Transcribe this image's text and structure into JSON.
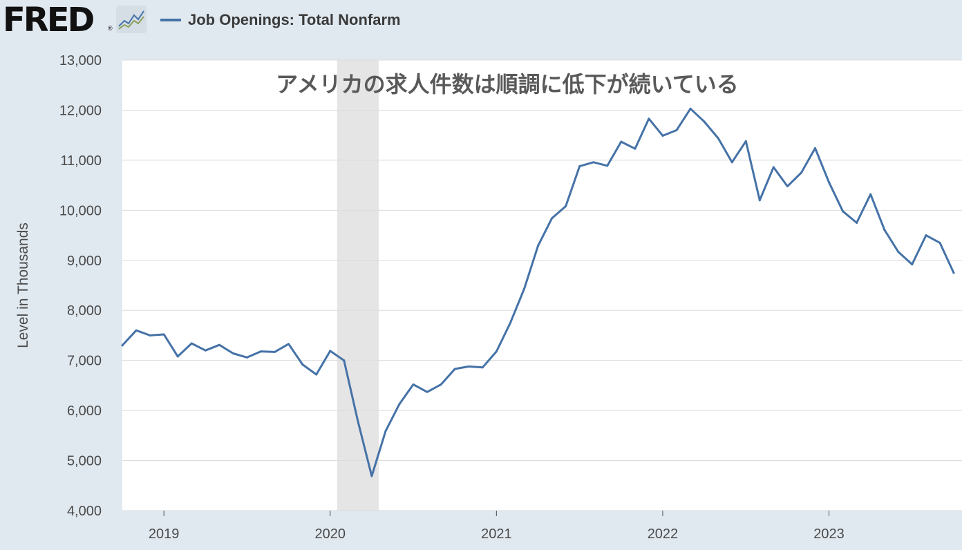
{
  "header": {
    "logo_text": "FRED",
    "logo_reg": "®",
    "legend_label": "Job Openings: Total Nonfarm"
  },
  "colors": {
    "series": "#4572a7",
    "background": "#e1e9f0",
    "plot_background": "#ffffff",
    "recession_band": "#e5e5e5",
    "grid": "#dcdcdc"
  },
  "chart_data": {
    "type": "line",
    "title": "アメリカの求人件数は順調に低下が続いている",
    "xlabel": "",
    "ylabel": "Level in Thousands",
    "ylim": [
      4000,
      13000
    ],
    "y_ticks": [
      4000,
      5000,
      6000,
      7000,
      8000,
      9000,
      10000,
      11000,
      12000,
      13000
    ],
    "y_tick_labels": [
      "4,000",
      "5,000",
      "6,000",
      "7,000",
      "8,000",
      "9,000",
      "10,000",
      "11,000",
      "12,000",
      "13,000"
    ],
    "x_tick_labels": [
      "2019",
      "2020",
      "2021",
      "2022",
      "2023"
    ],
    "x_ticks": [
      "2019-01",
      "2020-01",
      "2021-01",
      "2022-01",
      "2023-01"
    ],
    "xlim": [
      "2018-10",
      "2023-10"
    ],
    "grid": true,
    "legend": "top-left",
    "recession_shading": {
      "start": "2020-02",
      "end": "2020-04"
    },
    "series": [
      {
        "name": "Job Openings: Total Nonfarm",
        "x": [
          "2018-10",
          "2018-11",
          "2018-12",
          "2019-01",
          "2019-02",
          "2019-03",
          "2019-04",
          "2019-05",
          "2019-06",
          "2019-07",
          "2019-08",
          "2019-09",
          "2019-10",
          "2019-11",
          "2019-12",
          "2020-01",
          "2020-02",
          "2020-03",
          "2020-04",
          "2020-05",
          "2020-06",
          "2020-07",
          "2020-08",
          "2020-09",
          "2020-10",
          "2020-11",
          "2020-12",
          "2021-01",
          "2021-02",
          "2021-03",
          "2021-04",
          "2021-05",
          "2021-06",
          "2021-07",
          "2021-08",
          "2021-09",
          "2021-10",
          "2021-11",
          "2021-12",
          "2022-01",
          "2022-02",
          "2022-03",
          "2022-04",
          "2022-05",
          "2022-06",
          "2022-07",
          "2022-08",
          "2022-09",
          "2022-10",
          "2022-11",
          "2022-12",
          "2023-01",
          "2023-02",
          "2023-03",
          "2023-04",
          "2023-05",
          "2023-06",
          "2023-07",
          "2023-08",
          "2023-09",
          "2023-10"
        ],
        "values": [
          7300,
          7600,
          7500,
          7520,
          7080,
          7340,
          7200,
          7310,
          7140,
          7060,
          7180,
          7170,
          7330,
          6920,
          6720,
          7190,
          7000,
          5790,
          4690,
          5590,
          6130,
          6520,
          6370,
          6520,
          6830,
          6880,
          6860,
          7180,
          7750,
          8430,
          9290,
          9840,
          10080,
          10880,
          10960,
          10890,
          11370,
          11230,
          11830,
          11490,
          11600,
          12030,
          11770,
          11440,
          10960,
          11380,
          10200,
          10860,
          10480,
          10750,
          11240,
          10560,
          9980,
          9750,
          10320,
          9610,
          9170,
          8920,
          9500,
          9350,
          8750
        ]
      }
    ]
  }
}
